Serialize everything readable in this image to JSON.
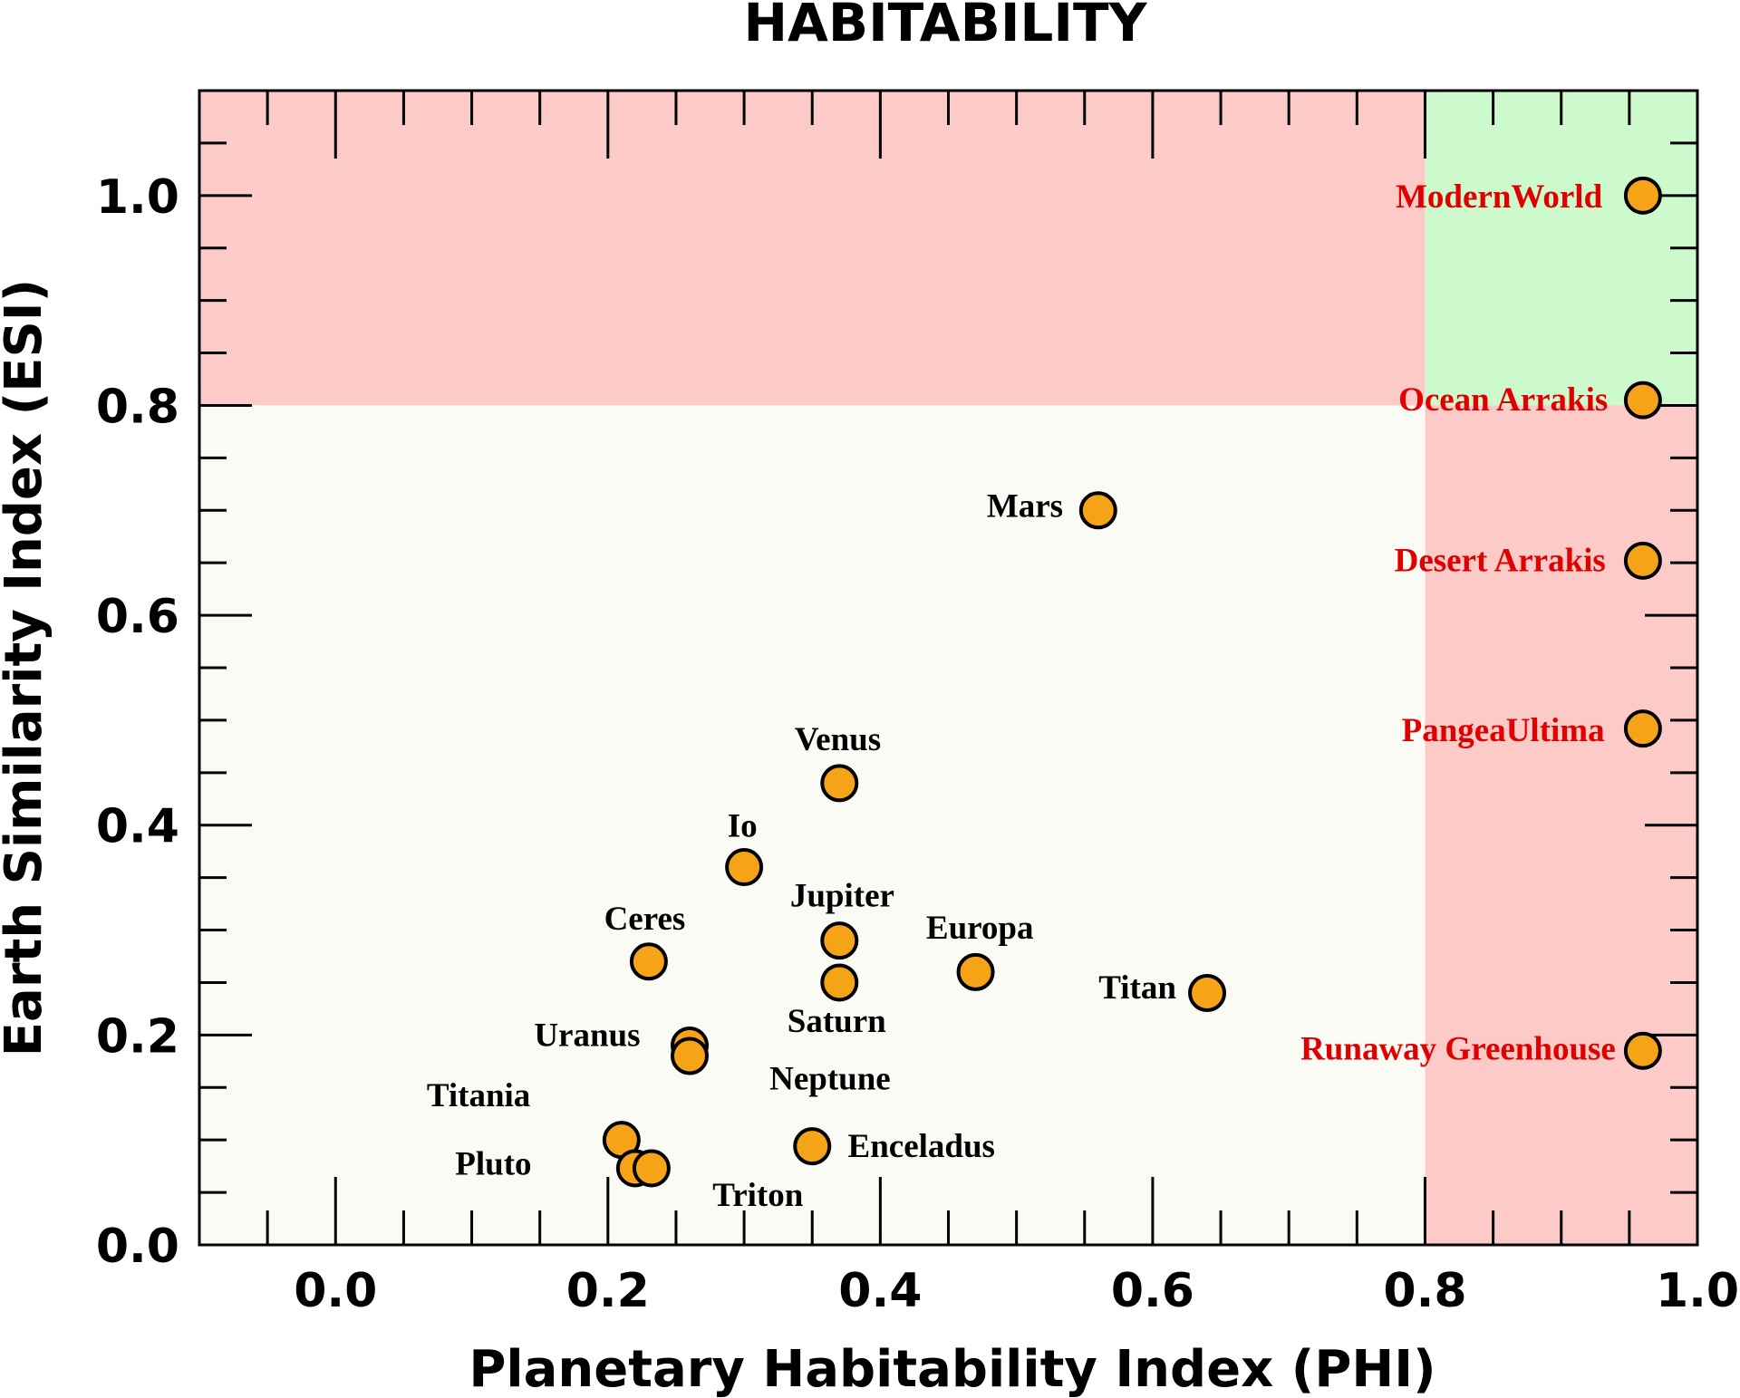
{
  "chart_data": {
    "type": "scatter",
    "title": "HABITABILITY",
    "xlabel": "Planetary Habitability Index (PHI)",
    "ylabel": "Earth Similarity Index (ESI)",
    "xlim": [
      -0.1,
      1.0
    ],
    "ylim": [
      0.0,
      1.1
    ],
    "xticks": [
      "0.0",
      "0.2",
      "0.4",
      "0.6",
      "0.8",
      "1.0"
    ],
    "yticks": [
      "0.0",
      "0.2",
      "0.4",
      "0.6",
      "0.8",
      "1.0"
    ],
    "grid": false,
    "regions": [
      {
        "x": [
          -0.1,
          0.8
        ],
        "y": [
          0.8,
          1.1
        ],
        "color": "#fccbc8"
      },
      {
        "x": [
          0.8,
          1.0
        ],
        "y": [
          0.8,
          1.1
        ],
        "color": "#ccfacc"
      },
      {
        "x": [
          0.8,
          1.0
        ],
        "y": [
          0.0,
          0.8
        ],
        "color": "#fccbc8"
      },
      {
        "x": [
          -0.1,
          0.8
        ],
        "y": [
          0.0,
          0.8
        ],
        "color": "#fbfbf5"
      }
    ],
    "marker_color": "#f5a418",
    "points": [
      {
        "label": "ModernWorld",
        "x": 0.96,
        "y": 1.0,
        "label_color": "#e00000"
      },
      {
        "label": "Ocean Arrakis",
        "x": 0.96,
        "y": 0.805,
        "label_color": "#e00000"
      },
      {
        "label": "Desert Arrakis",
        "x": 0.96,
        "y": 0.652,
        "label_color": "#e00000"
      },
      {
        "label": "PangeaUltima",
        "x": 0.96,
        "y": 0.492,
        "label_color": "#e00000"
      },
      {
        "label": "Runaway Greenhouse",
        "x": 0.96,
        "y": 0.185,
        "label_color": "#e00000"
      },
      {
        "label": "Mars",
        "x": 0.56,
        "y": 0.7,
        "label_color": "#000000"
      },
      {
        "label": "Venus",
        "x": 0.37,
        "y": 0.44,
        "label_color": "#000000"
      },
      {
        "label": "Io",
        "x": 0.3,
        "y": 0.36,
        "label_color": "#000000"
      },
      {
        "label": "Jupiter",
        "x": 0.37,
        "y": 0.29,
        "label_color": "#000000"
      },
      {
        "label": "Saturn",
        "x": 0.37,
        "y": 0.25,
        "label_color": "#000000"
      },
      {
        "label": "Europa",
        "x": 0.47,
        "y": 0.26,
        "label_color": "#000000"
      },
      {
        "label": "Titan",
        "x": 0.64,
        "y": 0.24,
        "label_color": "#000000"
      },
      {
        "label": "Ceres",
        "x": 0.23,
        "y": 0.27,
        "label_color": "#000000"
      },
      {
        "label": "Uranus",
        "x": 0.26,
        "y": 0.19,
        "label_color": "#000000"
      },
      {
        "label": "Neptune",
        "x": 0.26,
        "y": 0.18,
        "label_color": "#000000"
      },
      {
        "label": "Titania",
        "x": 0.21,
        "y": 0.1,
        "label_color": "#000000"
      },
      {
        "label": "Pluto",
        "x": 0.22,
        "y": 0.073,
        "label_color": "#000000"
      },
      {
        "label": "Triton",
        "x": 0.232,
        "y": 0.073,
        "label_color": "#000000"
      },
      {
        "label": "Enceladus",
        "x": 0.35,
        "y": 0.094,
        "label_color": "#000000"
      }
    ]
  }
}
